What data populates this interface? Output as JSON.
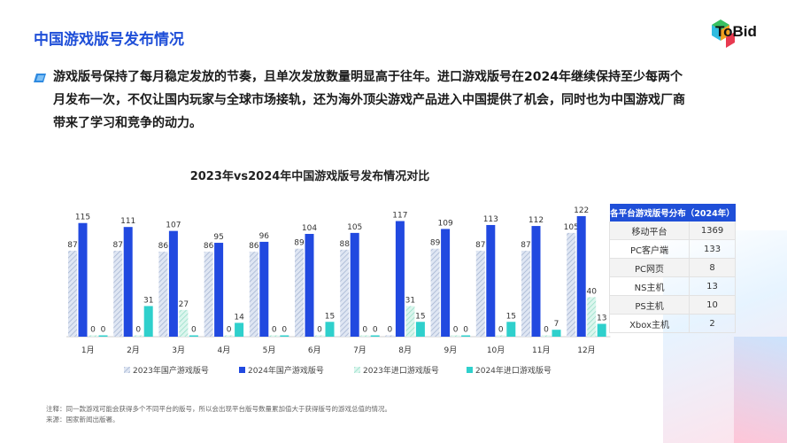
{
  "page": {
    "title": "中国游戏版号发布情况",
    "brand": "ToBid",
    "intro": "游戏版号保持了每月稳定发放的节奏，且单次发放数量明显高于往年。进口游戏版号在2024年继续保持至少每两个月发布一次，不仅让国内玩家与全球市场接轨，还为海外顶尖游戏产品进入中国提供了机会，同时也为中国游戏厂商带来了学习和竞争的动力。",
    "note": "注释：同一款游戏可能会获得多个不同平台的版号，所以会出现平台版号数量累加值大于获得版号的游戏总值的情况。",
    "source": "来源：国家新闻出版署。"
  },
  "colors": {
    "accent": "#1f4fd8",
    "domestic2023": "#c8d4ea",
    "domestic2024": "#2149e0",
    "import2023": "#a8ead8",
    "import2024": "#2fd0cc"
  },
  "chart_data": [
    {
      "type": "bar",
      "title": "2023年vs2024年中国游戏版号发布情况对比",
      "categories": [
        "1月",
        "2月",
        "3月",
        "4月",
        "5月",
        "6月",
        "7月",
        "8月",
        "9月",
        "10月",
        "11月",
        "12月"
      ],
      "series": [
        {
          "name": "2023年国产游戏版号",
          "values": [
            87,
            87,
            86,
            86,
            86,
            89,
            88,
            0,
            89,
            87,
            87,
            105
          ]
        },
        {
          "name": "2024年国产游戏版号",
          "values": [
            115,
            111,
            107,
            95,
            96,
            104,
            105,
            117,
            109,
            113,
            112,
            122
          ]
        },
        {
          "name": "2023年进口游戏版号",
          "values": [
            0,
            0,
            27,
            0,
            0,
            0,
            0,
            31,
            0,
            0,
            0,
            40
          ]
        },
        {
          "name": "2024年进口游戏版号",
          "values": [
            0,
            31,
            0,
            14,
            0,
            15,
            0,
            15,
            0,
            15,
            7,
            13
          ]
        }
      ],
      "ylim": [
        0,
        130
      ],
      "grid": false,
      "legend": "bottom"
    },
    {
      "type": "table",
      "title": "各平台游戏版号分布（2024年）",
      "rows": [
        {
          "platform": "移动平台",
          "count": 1369
        },
        {
          "platform": "PC客户端",
          "count": 133
        },
        {
          "platform": "PC网页",
          "count": 8
        },
        {
          "platform": "NS主机",
          "count": 13
        },
        {
          "platform": "PS主机",
          "count": 10
        },
        {
          "platform": "Xbox主机",
          "count": 2
        }
      ]
    }
  ]
}
